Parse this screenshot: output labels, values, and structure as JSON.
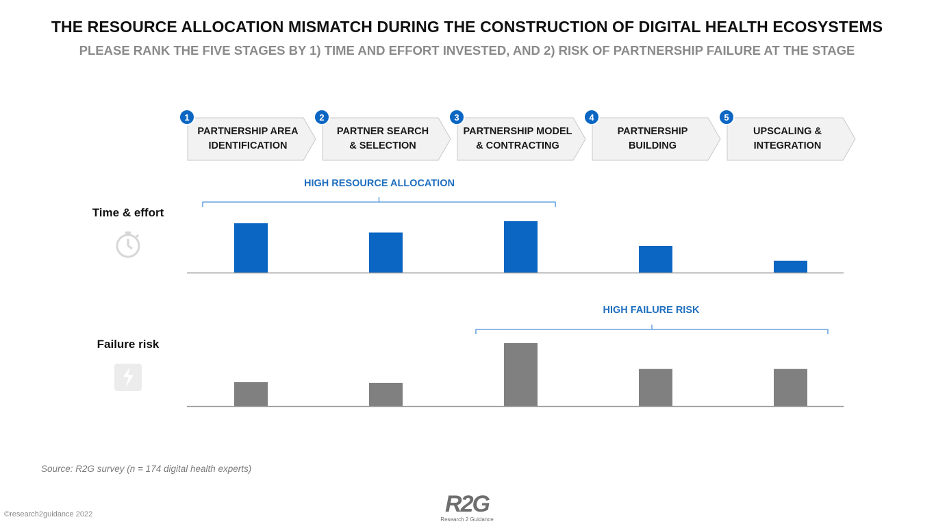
{
  "title": "THE RESOURCE ALLOCATION MISMATCH DURING THE CONSTRUCTION OF DIGITAL HEALTH ECOSYSTEMS",
  "subtitle": "PLEASE RANK THE FIVE STAGES BY 1) TIME AND EFFORT INVESTED, AND 2) RISK OF PARTNERSHIP FAILURE AT THE STAGE",
  "stages": [
    {
      "num": "1",
      "label": "PARTNERSHIP AREA\nIDENTIFICATION"
    },
    {
      "num": "2",
      "label": "PARTNER SEARCH\n& SELECTION"
    },
    {
      "num": "3",
      "label": "PARTNERSHIP MODEL\n& CONTRACTING"
    },
    {
      "num": "4",
      "label": "PARTNERSHIP\nBUILDING"
    },
    {
      "num": "5",
      "label": "UPSCALING &\nINTEGRATION"
    }
  ],
  "rows": {
    "time_label": "Time & effort",
    "time_icon": "stopwatch-icon",
    "risk_label": "Failure risk",
    "risk_icon": "broken-link-icon"
  },
  "brackets": {
    "high_resource": "HIGH RESOURCE ALLOCATION",
    "high_failure": "HIGH FAILURE RISK"
  },
  "chart_data": [
    {
      "type": "bar",
      "categories": [
        "PARTNERSHIP AREA IDENTIFICATION",
        "PARTNER SEARCH & SELECTION",
        "PARTNERSHIP MODEL & CONTRACTING",
        "PARTNERSHIP BUILDING",
        "UPSCALING & INTEGRATION"
      ],
      "series": [
        {
          "name": "Time & effort",
          "values": [
            0.96,
            0.78,
            1.0,
            0.52,
            0.23
          ]
        }
      ],
      "color": "#0a66c2",
      "ylim": [
        0,
        1
      ],
      "grid": false
    },
    {
      "type": "bar",
      "categories": [
        "PARTNERSHIP AREA IDENTIFICATION",
        "PARTNER SEARCH & SELECTION",
        "PARTNERSHIP MODEL & CONTRACTING",
        "PARTNERSHIP BUILDING",
        "UPSCALING & INTEGRATION"
      ],
      "series": [
        {
          "name": "Failure risk",
          "values": [
            0.38,
            0.37,
            1.0,
            0.59,
            0.59
          ]
        }
      ],
      "color": "#808080",
      "ylim": [
        0,
        1
      ],
      "grid": false
    }
  ],
  "colors": {
    "accent": "#0a66c2",
    "bracket": "#1f6fbf",
    "risk_bar": "#808080",
    "chevron_fill": "#f2f2f2",
    "chevron_stroke": "#c8c8c8"
  },
  "source": "Source: R2G survey (n = 174 digital health experts)",
  "copyright": "©research2guidance 2022",
  "logo": {
    "mark": "R2G",
    "sub": "Research 2 Guidance"
  }
}
